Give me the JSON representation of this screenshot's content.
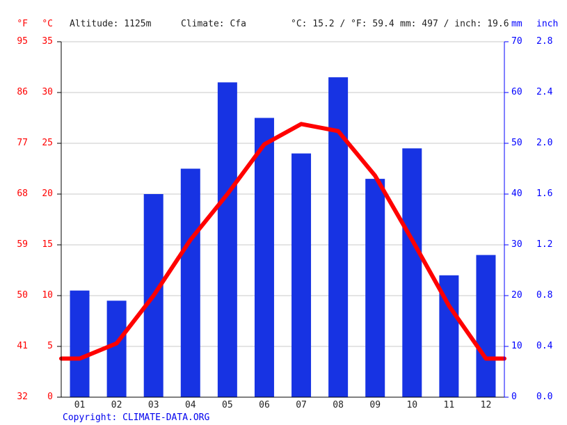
{
  "header": {
    "altitude": "Altitude: 1125m",
    "climate": "Climate: Cfa",
    "temperature_summary": "°C: 15.2 / °F: 59.4",
    "precipitation_summary": "mm: 497 / inch: 19.6"
  },
  "footer": {
    "copyright_label": "Copyright:",
    "link": "CLIMATE-DATA.ORG"
  },
  "colors": {
    "temperature_red": "#ff0000",
    "bar_blue": "#1733e3",
    "axis_label_blue": "#0000ff",
    "grid_gray": "#c8c8c8",
    "axis_black": "#000000",
    "text_dark": "#222222",
    "footer_blue": "#0000ee"
  },
  "chart_data": {
    "type": "bar",
    "title": "Climate graph (precipitation bars and temperature line by month)",
    "categories": [
      "01",
      "02",
      "03",
      "04",
      "05",
      "06",
      "07",
      "08",
      "09",
      "10",
      "11",
      "12"
    ],
    "series": [
      {
        "name": "Precipitation",
        "kind": "bar",
        "unit": "mm",
        "values": [
          21,
          19,
          40,
          45,
          62,
          55,
          48,
          63,
          43,
          49,
          24,
          28
        ]
      },
      {
        "name": "Temperature",
        "kind": "line",
        "unit": "°C",
        "values": [
          3.8,
          5.3,
          10.0,
          15.5,
          20.0,
          24.9,
          26.9,
          26.2,
          21.8,
          15.5,
          9.0,
          3.8
        ]
      }
    ],
    "axes": {
      "fahrenheit": {
        "label": "°F",
        "ticks": [
          "95",
          "86",
          "77",
          "68",
          "59",
          "50",
          "41",
          "32"
        ]
      },
      "celsius": {
        "label": "°C",
        "ticks": [
          "35",
          "30",
          "25",
          "20",
          "15",
          "10",
          "5",
          "0"
        ],
        "min": 0,
        "max": 35
      },
      "mm": {
        "label": "mm",
        "ticks": [
          "70",
          "60",
          "50",
          "40",
          "30",
          "20",
          "10",
          "0"
        ],
        "min": 0,
        "max": 70
      },
      "inch": {
        "label": "inch",
        "ticks": [
          "2.8",
          "2.4",
          "2.0",
          "1.6",
          "1.2",
          "0.8",
          "0.4",
          "0.0"
        ]
      }
    },
    "grid": true,
    "legend": "none"
  }
}
